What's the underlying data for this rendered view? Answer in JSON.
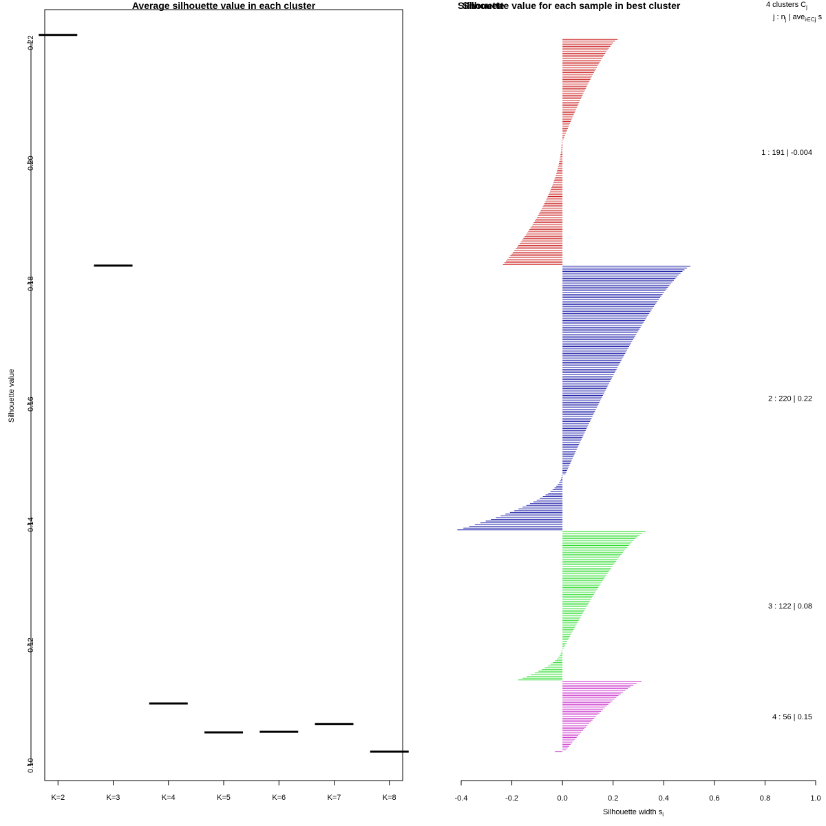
{
  "chart_data": [
    {
      "type": "line",
      "title": "Average silhouette value in each cluster",
      "xlabel": "",
      "ylabel": "Silhouette value",
      "categories": [
        "K=2",
        "K=3",
        "K=4",
        "K=5",
        "K=6",
        "K=7",
        "K=8"
      ],
      "values": [
        0.2213,
        0.183,
        0.1103,
        0.1055,
        0.1056,
        0.1069,
        0.1023
      ],
      "ylim": [
        0.0975,
        0.2255
      ],
      "yticks": [
        "0.10",
        "0.12",
        "0.14",
        "0.16",
        "0.18",
        "0.20",
        "0.22"
      ],
      "ytick_values": [
        0.1,
        0.12,
        0.14,
        0.16,
        0.18,
        0.2,
        0.22
      ],
      "grid": false
    },
    {
      "type": "bar",
      "orientation": "horizontal",
      "title": "Silhouette value for each sample in best cluster",
      "hidden_title": "Silhouette",
      "xlabel": "Silhouette width s",
      "xlabel_sub": "i",
      "xlim": [
        -0.4,
        1.0
      ],
      "xticks": [
        "-0.4",
        "-0.2",
        "0.0",
        "0.2",
        "0.4",
        "0.6",
        "0.8",
        "1.0"
      ],
      "xtick_values": [
        -0.4,
        -0.2,
        0.0,
        0.2,
        0.4,
        0.6,
        0.8,
        1.0
      ],
      "legend_header": {
        "line1_prefix": "4  clusters  C",
        "line1_sub": "j",
        "line2_prefix": "j :  n",
        "line2_sub": "j",
        "line2_mid": " | ave",
        "line2_sub2": "i∈Cj",
        "line2_suffix": "  s"
      },
      "clusters": [
        {
          "id": 1,
          "n": 191,
          "avg_label": "-0.004",
          "label": "1 :  191  |  -0.004",
          "color": "#cc2222",
          "pos_n": 58,
          "pos_max": 0.218,
          "pos_min": 0.004,
          "neg_n": 72,
          "neg_min": -0.235,
          "neg_max": -0.003
        },
        {
          "id": 2,
          "n": 220,
          "avg_label": "0.22",
          "label": "2 :  220  |  0.22",
          "color": "#1a1aa8",
          "pos_n": 120,
          "pos_max": 0.505,
          "pos_min": 0.012,
          "neg_n": 32,
          "neg_min": -0.415,
          "neg_max": -0.003
        },
        {
          "id": 3,
          "n": 122,
          "avg_label": "0.08",
          "label": "3 :  122  |  0.08",
          "color": "#33dd33",
          "pos_n": 68,
          "pos_max": 0.328,
          "pos_min": 0.004,
          "neg_n": 18,
          "neg_min": -0.175,
          "neg_max": -0.003
        },
        {
          "id": 4,
          "n": 56,
          "avg_label": "0.15",
          "label": "4 :  56  |  0.15",
          "color": "#cc33cc",
          "pos_n": 40,
          "pos_max": 0.312,
          "pos_min": 0.015,
          "neg_n": 1,
          "neg_min": -0.03,
          "neg_max": -0.03
        }
      ]
    }
  ]
}
